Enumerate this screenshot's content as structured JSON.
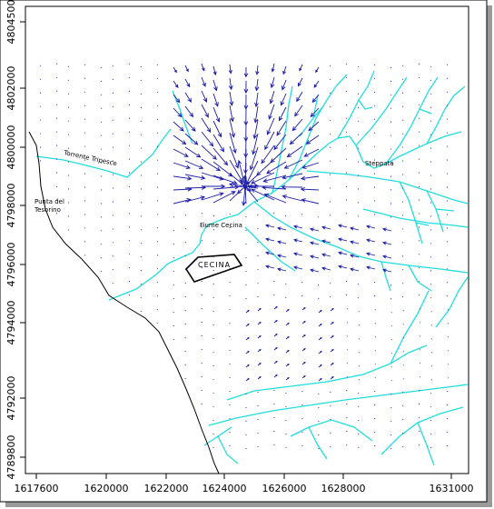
{
  "map": {
    "x_ticks": [
      "1617600",
      "1620000",
      "1622000",
      "1624000",
      "1626000",
      "1628000",
      "1631000"
    ],
    "y_ticks": [
      "4804500",
      "4802000",
      "4800000",
      "4798000",
      "4796000",
      "4794000",
      "4792000",
      "4789800"
    ],
    "labels": {
      "torrente": "Torrente Tripesce",
      "punta": [
        "Punta del",
        "Tesorino"
      ],
      "fiume": "Fiume Cecina",
      "cecina": "CECINA",
      "steppata": "Steppata"
    },
    "colors": {
      "river": "#22dddd",
      "coast": "#000000",
      "vectors": "#1a1aa8",
      "frame": "#000000",
      "shadow": "#9a9a9a"
    },
    "icons": [
      "velocity-vector-arrow",
      "town-polygon"
    ]
  }
}
